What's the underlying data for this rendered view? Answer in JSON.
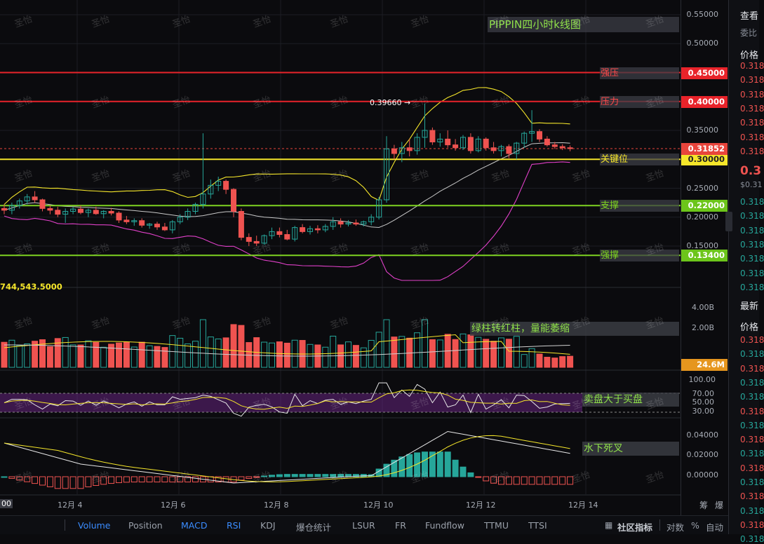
{
  "chart_title": "PIPPIN四小时k线图",
  "watermark_text": "圣怡",
  "price_axis": {
    "ticks": [
      "0.55000",
      "0.50000",
      "0.35000",
      "0.25000",
      "0.20000",
      "0.15000"
    ],
    "volume_ticks": [
      "4.00B",
      "2.00B"
    ],
    "rsi_ticks": [
      "100.00",
      "70.00",
      "50.00",
      "30.00"
    ],
    "macd_ticks": [
      "0.04000",
      "0.02000",
      "0.00000"
    ]
  },
  "levels": [
    {
      "label": "强压",
      "value": "0.45000",
      "color": "#e8232a",
      "tag_bg": "#e8232a",
      "label_color": "#ff4a4a"
    },
    {
      "label": "压力",
      "value": "0.40000",
      "color": "#e8232a",
      "tag_bg": "#e8232a",
      "label_color": "#ff4a4a"
    },
    {
      "label": "关键位",
      "value": "0.30000",
      "color": "#f5e62a",
      "tag_bg": "#f5e62a",
      "label_color": "#f5e62a"
    },
    {
      "label": "支撑",
      "value": "0.22000",
      "color": "#7ed321",
      "tag_bg": "#6cc51a",
      "label_color": "#7ed321"
    },
    {
      "label": "强撑",
      "value": "0.13400",
      "color": "#7ed321",
      "tag_bg": "#6cc51a",
      "label_color": "#7ed321"
    }
  ],
  "current_price": {
    "value": "0.31852",
    "color": "#e8453c"
  },
  "high_marker": "0.39660",
  "volume_readout": "744,543.5000",
  "volume_tag": "24.6M",
  "annotations": {
    "volume": "绿柱转红柱，量能萎缩",
    "rsi": "卖盘大于买盘",
    "macd": "水下死叉"
  },
  "dates": [
    "12月 4",
    "12月 6",
    "12月 8",
    "12月 10",
    "12月 12",
    "12月 14"
  ],
  "first_date_partial": "00",
  "toolbar": {
    "items": [
      "Volume",
      "Position",
      "MACD",
      "RSI",
      "KDJ",
      "爆仓统计",
      "LSUR",
      "FR",
      "Fundflow",
      "TTMU",
      "TTSI"
    ],
    "active": [
      "Volume",
      "MACD",
      "RSI"
    ],
    "right_items": [
      "社区指标",
      "对数",
      "%",
      "自动"
    ],
    "top_right": [
      "筹",
      "爆"
    ]
  },
  "right_panel": {
    "header": "查看",
    "sub": "委比",
    "col_header": "价格",
    "ask_prices": [
      "0.318",
      "0.318",
      "0.318",
      "0.318",
      "0.318",
      "0.318",
      "0.318"
    ],
    "last_price": "0.3",
    "last_sub": "$0.31",
    "bid_prices": [
      "0.318",
      "0.318",
      "0.318",
      "0.318",
      "0.318",
      "0.318",
      "0.318"
    ],
    "latest_header": "最新",
    "trades_header": "价格",
    "trade_prices": [
      "0.318",
      "0.318",
      "0.318",
      "0.318",
      "0.318",
      "0.318",
      "0.318",
      "0.318",
      "0.318",
      "0.318",
      "0.318",
      "0.318",
      "0.318",
      "0.318",
      "0.318"
    ]
  },
  "colors": {
    "up": "#26a69a",
    "down": "#ef5350",
    "bb_upper": "#f5e62a",
    "bb_mid": "#c8c8c8",
    "bb_lower": "#e040c8"
  },
  "chart_data": {
    "type": "candlestick",
    "title": "PIPPIN四小时k线图",
    "candles": [
      [
        0.215,
        0.222,
        0.205,
        0.212
      ],
      [
        0.212,
        0.225,
        0.205,
        0.22
      ],
      [
        0.22,
        0.232,
        0.215,
        0.228
      ],
      [
        0.228,
        0.24,
        0.222,
        0.235
      ],
      [
        0.235,
        0.245,
        0.225,
        0.23
      ],
      [
        0.23,
        0.232,
        0.21,
        0.215
      ],
      [
        0.215,
        0.22,
        0.205,
        0.212
      ],
      [
        0.212,
        0.218,
        0.2,
        0.205
      ],
      [
        0.205,
        0.215,
        0.19,
        0.21
      ],
      [
        0.21,
        0.218,
        0.205,
        0.214
      ],
      [
        0.214,
        0.22,
        0.205,
        0.208
      ],
      [
        0.208,
        0.215,
        0.2,
        0.212
      ],
      [
        0.212,
        0.218,
        0.204,
        0.206
      ],
      [
        0.206,
        0.212,
        0.198,
        0.21
      ],
      [
        0.21,
        0.216,
        0.203,
        0.207
      ],
      [
        0.207,
        0.21,
        0.19,
        0.195
      ],
      [
        0.195,
        0.202,
        0.188,
        0.192
      ],
      [
        0.192,
        0.198,
        0.185,
        0.194
      ],
      [
        0.194,
        0.198,
        0.182,
        0.186
      ],
      [
        0.186,
        0.19,
        0.18,
        0.188
      ],
      [
        0.188,
        0.192,
        0.178,
        0.183
      ],
      [
        0.183,
        0.19,
        0.176,
        0.178
      ],
      [
        0.178,
        0.195,
        0.172,
        0.192
      ],
      [
        0.192,
        0.205,
        0.188,
        0.2
      ],
      [
        0.2,
        0.215,
        0.195,
        0.21
      ],
      [
        0.21,
        0.225,
        0.205,
        0.222
      ],
      [
        0.222,
        0.345,
        0.215,
        0.24
      ],
      [
        0.24,
        0.265,
        0.232,
        0.255
      ],
      [
        0.255,
        0.27,
        0.245,
        0.262
      ],
      [
        0.262,
        0.265,
        0.24,
        0.248
      ],
      [
        0.248,
        0.25,
        0.2,
        0.21
      ],
      [
        0.21,
        0.215,
        0.16,
        0.165
      ],
      [
        0.165,
        0.172,
        0.15,
        0.158
      ],
      [
        0.158,
        0.168,
        0.15,
        0.155
      ],
      [
        0.155,
        0.17,
        0.152,
        0.168
      ],
      [
        0.168,
        0.182,
        0.162,
        0.175
      ],
      [
        0.175,
        0.182,
        0.165,
        0.17
      ],
      [
        0.17,
        0.178,
        0.16,
        0.162
      ],
      [
        0.162,
        0.185,
        0.158,
        0.182
      ],
      [
        0.182,
        0.188,
        0.172,
        0.175
      ],
      [
        0.175,
        0.185,
        0.17,
        0.18
      ],
      [
        0.18,
        0.186,
        0.172,
        0.178
      ],
      [
        0.178,
        0.188,
        0.174,
        0.184
      ],
      [
        0.184,
        0.2,
        0.178,
        0.192
      ],
      [
        0.192,
        0.198,
        0.182,
        0.188
      ],
      [
        0.188,
        0.195,
        0.184,
        0.19
      ],
      [
        0.19,
        0.196,
        0.185,
        0.188
      ],
      [
        0.188,
        0.194,
        0.184,
        0.192
      ],
      [
        0.192,
        0.205,
        0.186,
        0.2
      ],
      [
        0.2,
        0.235,
        0.196,
        0.23
      ],
      [
        0.23,
        0.34,
        0.225,
        0.318
      ],
      [
        0.318,
        0.325,
        0.3,
        0.31
      ],
      [
        0.31,
        0.33,
        0.295,
        0.32
      ],
      [
        0.32,
        0.335,
        0.305,
        0.315
      ],
      [
        0.315,
        0.345,
        0.308,
        0.338
      ],
      [
        0.338,
        0.396,
        0.32,
        0.35
      ],
      [
        0.35,
        0.355,
        0.325,
        0.33
      ],
      [
        0.33,
        0.345,
        0.322,
        0.335
      ],
      [
        0.335,
        0.35,
        0.32,
        0.325
      ],
      [
        0.325,
        0.335,
        0.315,
        0.32
      ],
      [
        0.32,
        0.342,
        0.316,
        0.338
      ],
      [
        0.338,
        0.345,
        0.31,
        0.315
      ],
      [
        0.315,
        0.34,
        0.312,
        0.335
      ],
      [
        0.335,
        0.338,
        0.315,
        0.32
      ],
      [
        0.32,
        0.33,
        0.31,
        0.315
      ],
      [
        0.315,
        0.325,
        0.305,
        0.322
      ],
      [
        0.322,
        0.326,
        0.302,
        0.31
      ],
      [
        0.31,
        0.33,
        0.3,
        0.328
      ],
      [
        0.328,
        0.348,
        0.32,
        0.345
      ],
      [
        0.345,
        0.385,
        0.33,
        0.348
      ],
      [
        0.348,
        0.352,
        0.33,
        0.335
      ],
      [
        0.335,
        0.34,
        0.322,
        0.325
      ],
      [
        0.325,
        0.33,
        0.318,
        0.322
      ],
      [
        0.322,
        0.326,
        0.316,
        0.32
      ],
      [
        0.32,
        0.324,
        0.314,
        0.3185
      ]
    ]
  }
}
